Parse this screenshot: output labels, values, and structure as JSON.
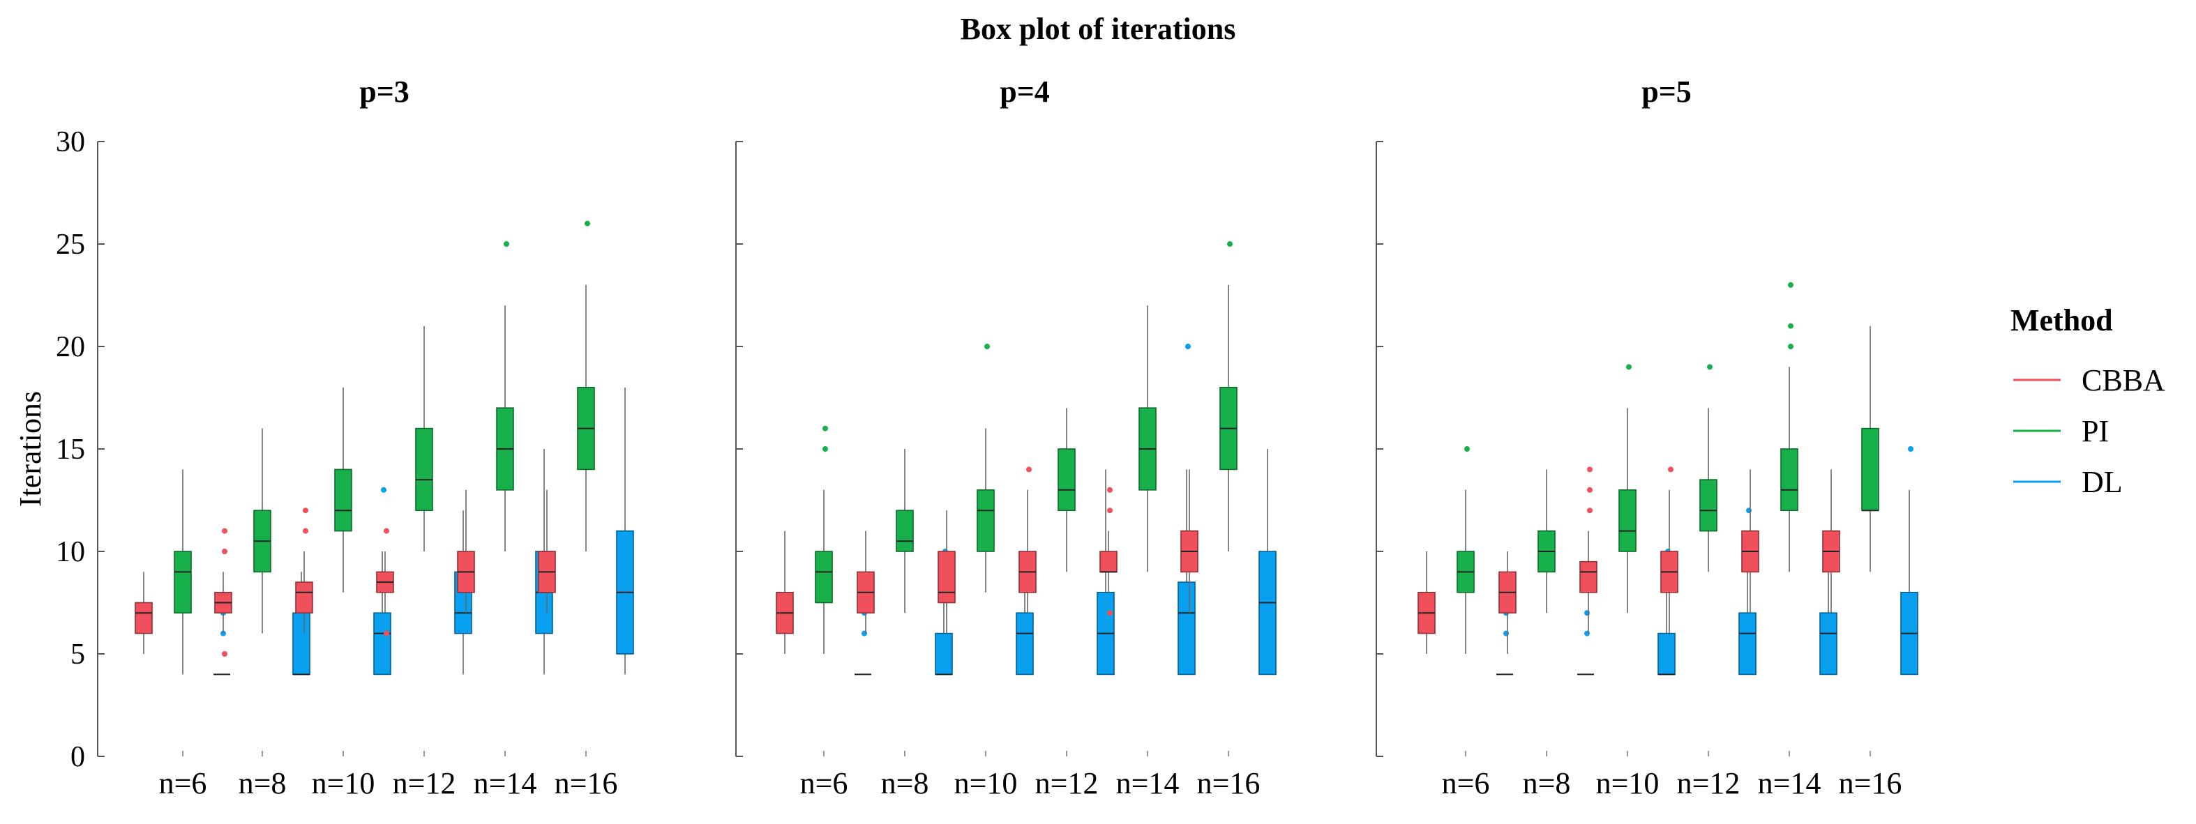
{
  "title": "Box plot of iterations",
  "ylabel": "Iterations",
  "ylim": [
    0,
    30
  ],
  "yticks": [
    0,
    5,
    10,
    15,
    20,
    25,
    30
  ],
  "legend": {
    "title": "Method",
    "position": "right",
    "entries": [
      {
        "name": "CBBA",
        "color": "#f0505c"
      },
      {
        "name": "PI",
        "color": "#18b04a"
      },
      {
        "name": "DL",
        "color": "#0aa0f0"
      }
    ]
  },
  "chart_data": [
    {
      "type": "box",
      "title": "p=3",
      "categories": [
        "n=6",
        "n=8",
        "n=10",
        "n=12",
        "n=14",
        "n=16"
      ],
      "series": [
        {
          "name": "CBBA",
          "boxes": [
            {
              "whisker_low": 5,
              "q1": 6,
              "median": 7,
              "q3": 7.5,
              "whisker_high": 9,
              "outliers": []
            },
            {
              "whisker_low": 6,
              "q1": 7,
              "median": 7.5,
              "q3": 8,
              "whisker_high": 9,
              "outliers": [
                5,
                10,
                11
              ]
            },
            {
              "whisker_low": 6,
              "q1": 7,
              "median": 8,
              "q3": 8.5,
              "whisker_high": 10,
              "outliers": [
                11,
                12
              ]
            },
            {
              "whisker_low": 7,
              "q1": 8,
              "median": 8.5,
              "q3": 9,
              "whisker_high": 10,
              "outliers": [
                6,
                11
              ]
            },
            {
              "whisker_low": 7,
              "q1": 8,
              "median": 9,
              "q3": 10,
              "whisker_high": 13,
              "outliers": []
            },
            {
              "whisker_low": 7,
              "q1": 8,
              "median": 9,
              "q3": 10,
              "whisker_high": 13,
              "outliers": []
            }
          ]
        },
        {
          "name": "PI",
          "boxes": [
            {
              "whisker_low": 4,
              "q1": 7,
              "median": 9,
              "q3": 10,
              "whisker_high": 14,
              "outliers": []
            },
            {
              "whisker_low": 6,
              "q1": 9,
              "median": 10.5,
              "q3": 12,
              "whisker_high": 16,
              "outliers": []
            },
            {
              "whisker_low": 8,
              "q1": 11,
              "median": 12,
              "q3": 14,
              "whisker_high": 18,
              "outliers": []
            },
            {
              "whisker_low": 10,
              "q1": 12,
              "median": 13.5,
              "q3": 16,
              "whisker_high": 21,
              "outliers": []
            },
            {
              "whisker_low": 10,
              "q1": 13,
              "median": 15,
              "q3": 17,
              "whisker_high": 22,
              "outliers": [
                25
              ]
            },
            {
              "whisker_low": 10,
              "q1": 14,
              "median": 16,
              "q3": 18,
              "whisker_high": 23,
              "outliers": [
                26
              ]
            }
          ]
        },
        {
          "name": "DL",
          "boxes": [
            {
              "whisker_low": 4,
              "q1": 4,
              "median": 4,
              "q3": 4,
              "whisker_high": 4,
              "outliers": [
                6,
                7
              ]
            },
            {
              "whisker_low": 4,
              "q1": 4,
              "median": 4,
              "q3": 7,
              "whisker_high": 9,
              "outliers": []
            },
            {
              "whisker_low": 4,
              "q1": 4,
              "median": 6,
              "q3": 7,
              "whisker_high": 10,
              "outliers": [
                13
              ]
            },
            {
              "whisker_low": 4,
              "q1": 6,
              "median": 7,
              "q3": 9,
              "whisker_high": 12,
              "outliers": []
            },
            {
              "whisker_low": 4,
              "q1": 6,
              "median": 8,
              "q3": 10,
              "whisker_high": 15,
              "outliers": []
            },
            {
              "whisker_low": 4,
              "q1": 5,
              "median": 8,
              "q3": 11,
              "whisker_high": 18,
              "outliers": []
            }
          ]
        }
      ]
    },
    {
      "type": "box",
      "title": "p=4",
      "categories": [
        "n=6",
        "n=8",
        "n=10",
        "n=12",
        "n=14",
        "n=16"
      ],
      "series": [
        {
          "name": "CBBA",
          "boxes": [
            {
              "whisker_low": 5,
              "q1": 6,
              "median": 7,
              "q3": 8,
              "whisker_high": 11,
              "outliers": []
            },
            {
              "whisker_low": 6,
              "q1": 7,
              "median": 8,
              "q3": 9,
              "whisker_high": 11,
              "outliers": []
            },
            {
              "whisker_low": 6,
              "q1": 7.5,
              "median": 8,
              "q3": 10,
              "whisker_high": 12,
              "outliers": []
            },
            {
              "whisker_low": 7,
              "q1": 8,
              "median": 9,
              "q3": 10,
              "whisker_high": 13,
              "outliers": [
                14
              ]
            },
            {
              "whisker_low": 8,
              "q1": 9,
              "median": 9,
              "q3": 10,
              "whisker_high": 11,
              "outliers": [
                7,
                12,
                13
              ]
            },
            {
              "whisker_low": 7,
              "q1": 9,
              "median": 10,
              "q3": 11,
              "whisker_high": 14,
              "outliers": []
            }
          ]
        },
        {
          "name": "PI",
          "boxes": [
            {
              "whisker_low": 5,
              "q1": 7.5,
              "median": 9,
              "q3": 10,
              "whisker_high": 13,
              "outliers": [
                15,
                16
              ]
            },
            {
              "whisker_low": 7,
              "q1": 10,
              "median": 10.5,
              "q3": 12,
              "whisker_high": 15,
              "outliers": []
            },
            {
              "whisker_low": 8,
              "q1": 10,
              "median": 12,
              "q3": 13,
              "whisker_high": 16,
              "outliers": [
                20
              ]
            },
            {
              "whisker_low": 9,
              "q1": 12,
              "median": 13,
              "q3": 15,
              "whisker_high": 17,
              "outliers": []
            },
            {
              "whisker_low": 9,
              "q1": 13,
              "median": 15,
              "q3": 17,
              "whisker_high": 22,
              "outliers": []
            },
            {
              "whisker_low": 10,
              "q1": 14,
              "median": 16,
              "q3": 18,
              "whisker_high": 23,
              "outliers": [
                25
              ]
            }
          ]
        },
        {
          "name": "DL",
          "boxes": [
            {
              "whisker_low": 4,
              "q1": 4,
              "median": 4,
              "q3": 4,
              "whisker_high": 4,
              "outliers": [
                6,
                7
              ]
            },
            {
              "whisker_low": 4,
              "q1": 4,
              "median": 4,
              "q3": 6,
              "whisker_high": 8,
              "outliers": [
                10
              ]
            },
            {
              "whisker_low": 4,
              "q1": 4,
              "median": 6,
              "q3": 7,
              "whisker_high": 9,
              "outliers": []
            },
            {
              "whisker_low": 4,
              "q1": 4,
              "median": 6,
              "q3": 8,
              "whisker_high": 14,
              "outliers": []
            },
            {
              "whisker_low": 4,
              "q1": 4,
              "median": 7,
              "q3": 8.5,
              "whisker_high": 14,
              "outliers": [
                20
              ]
            },
            {
              "whisker_low": 4,
              "q1": 4,
              "median": 7.5,
              "q3": 10,
              "whisker_high": 15,
              "outliers": []
            }
          ]
        }
      ]
    },
    {
      "type": "box",
      "title": "p=5",
      "categories": [
        "n=6",
        "n=8",
        "n=10",
        "n=12",
        "n=14",
        "n=16"
      ],
      "series": [
        {
          "name": "CBBA",
          "boxes": [
            {
              "whisker_low": 5,
              "q1": 6,
              "median": 7,
              "q3": 8,
              "whisker_high": 10,
              "outliers": []
            },
            {
              "whisker_low": 5,
              "q1": 7,
              "median": 8,
              "q3": 9,
              "whisker_high": 10,
              "outliers": []
            },
            {
              "whisker_low": 6,
              "q1": 8,
              "median": 9,
              "q3": 9.5,
              "whisker_high": 11,
              "outliers": [
                12,
                13,
                14
              ]
            },
            {
              "whisker_low": 6,
              "q1": 8,
              "median": 9,
              "q3": 10,
              "whisker_high": 13,
              "outliers": [
                14
              ]
            },
            {
              "whisker_low": 7,
              "q1": 9,
              "median": 10,
              "q3": 11,
              "whisker_high": 14,
              "outliers": []
            },
            {
              "whisker_low": 7,
              "q1": 9,
              "median": 10,
              "q3": 11,
              "whisker_high": 14,
              "outliers": []
            }
          ]
        },
        {
          "name": "PI",
          "boxes": [
            {
              "whisker_low": 5,
              "q1": 8,
              "median": 9,
              "q3": 10,
              "whisker_high": 13,
              "outliers": [
                15
              ]
            },
            {
              "whisker_low": 7,
              "q1": 9,
              "median": 10,
              "q3": 11,
              "whisker_high": 14,
              "outliers": []
            },
            {
              "whisker_low": 7,
              "q1": 10,
              "median": 11,
              "q3": 13,
              "whisker_high": 17,
              "outliers": [
                19
              ]
            },
            {
              "whisker_low": 9,
              "q1": 11,
              "median": 12,
              "q3": 13.5,
              "whisker_high": 17,
              "outliers": [
                19
              ]
            },
            {
              "whisker_low": 9,
              "q1": 12,
              "median": 13,
              "q3": 15,
              "whisker_high": 19,
              "outliers": [
                20,
                21,
                23
              ]
            },
            {
              "whisker_low": 9,
              "q1": 12,
              "median": 12,
              "q3": 16,
              "whisker_high": 21,
              "outliers": []
            }
          ]
        },
        {
          "name": "DL",
          "boxes": [
            {
              "whisker_low": 4,
              "q1": 4,
              "median": 4,
              "q3": 4,
              "whisker_high": 4,
              "outliers": [
                6,
                7
              ]
            },
            {
              "whisker_low": 4,
              "q1": 4,
              "median": 4,
              "q3": 4,
              "whisker_high": 4,
              "outliers": [
                6,
                7
              ]
            },
            {
              "whisker_low": 4,
              "q1": 4,
              "median": 4,
              "q3": 6,
              "whisker_high": 9,
              "outliers": [
                10
              ]
            },
            {
              "whisker_low": 4,
              "q1": 4,
              "median": 6,
              "q3": 7,
              "whisker_high": 10,
              "outliers": [
                12
              ]
            },
            {
              "whisker_low": 4,
              "q1": 4,
              "median": 6,
              "q3": 7,
              "whisker_high": 10,
              "outliers": []
            },
            {
              "whisker_low": 4,
              "q1": 4,
              "median": 6,
              "q3": 8,
              "whisker_high": 13,
              "outliers": [
                15
              ]
            }
          ]
        }
      ]
    }
  ]
}
